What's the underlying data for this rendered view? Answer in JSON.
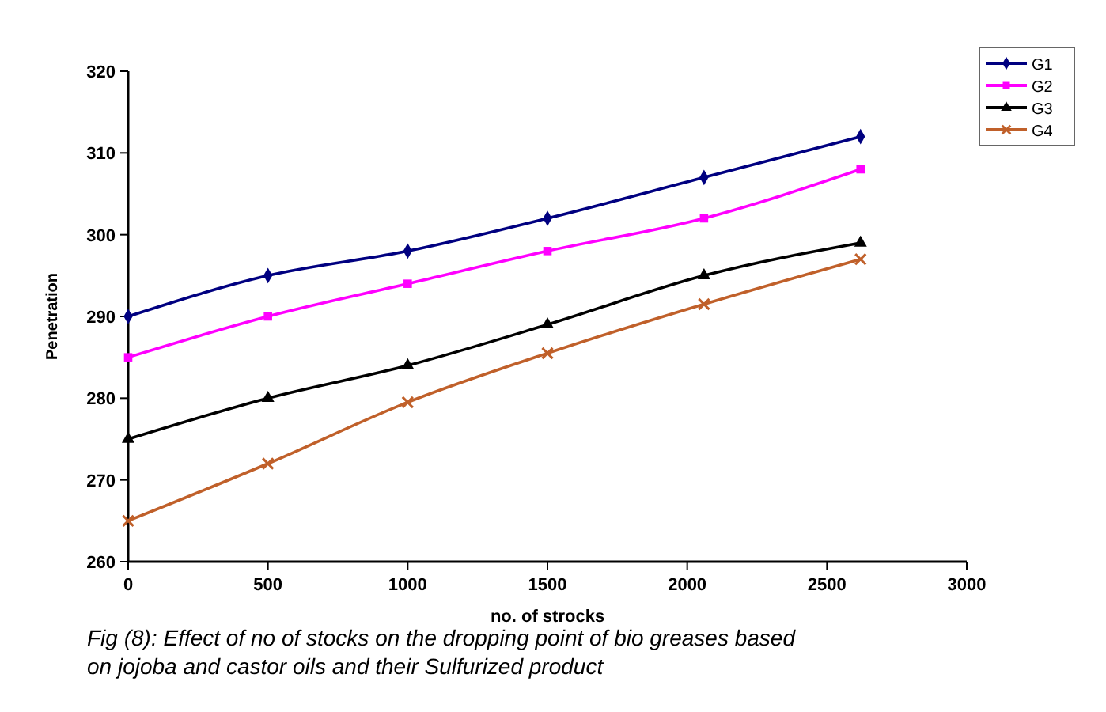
{
  "chart_data": {
    "type": "line",
    "xlabel": "no. of strocks",
    "ylabel": "Penetration",
    "x": [
      0,
      500,
      1000,
      1500,
      2060,
      2620
    ],
    "xlim": [
      0,
      3000
    ],
    "xticks": [
      0,
      500,
      1000,
      1500,
      2000,
      2500,
      3000
    ],
    "ylim": [
      260,
      320
    ],
    "yticks": [
      260,
      270,
      280,
      290,
      300,
      310,
      320
    ],
    "grid": false,
    "legend": "top right",
    "series": [
      {
        "name": "G1",
        "color": "#000080",
        "marker": "diamond",
        "values": [
          290,
          295,
          298,
          302,
          307,
          312
        ]
      },
      {
        "name": "G2",
        "color": "#ff00ff",
        "marker": "square",
        "values": [
          285,
          290,
          294,
          298,
          302,
          308
        ]
      },
      {
        "name": "G3",
        "color": "#000000",
        "marker": "triangle",
        "values": [
          275,
          280,
          284,
          289,
          295,
          299
        ]
      },
      {
        "name": "G4",
        "color": "#c0602a",
        "marker": "cross",
        "values": [
          265,
          272,
          279.5,
          285.5,
          291.5,
          297
        ]
      }
    ],
    "annotations": [
      "Fig (8): Effect of no of stocks on the dropping point of bio greases based on jojoba and castor oils and their Sulfurized product"
    ]
  }
}
